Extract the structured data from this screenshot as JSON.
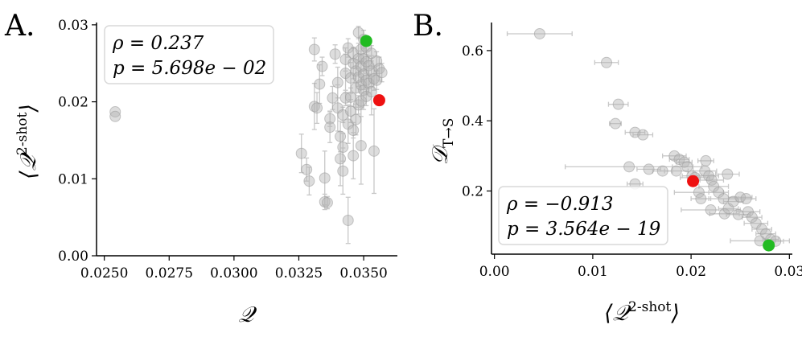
{
  "chart_data": [
    {
      "panel_label": "A.",
      "type": "scatter",
      "xlabel": "𝒬",
      "ylabel_main": "⟨𝒬",
      "ylabel_sup": "2-shot",
      "ylabel_close": "⟩",
      "xlim": [
        0.0247,
        0.0363
      ],
      "ylim": [
        0.0,
        0.0303
      ],
      "xticks": [
        0.025,
        0.0275,
        0.03,
        0.0325,
        0.035
      ],
      "xtick_labels": [
        "0.0250",
        "0.0275",
        "0.0300",
        "0.0325",
        "0.0350"
      ],
      "yticks": [
        0.0,
        0.01,
        0.02,
        0.03
      ],
      "ytick_labels": [
        "0.00",
        "0.01",
        "0.02",
        "0.03"
      ],
      "stats": {
        "rho_line": "ρ = 0.237",
        "p_line": "p = 5.698e − 02"
      },
      "legend_position": "top-left",
      "grid": false,
      "colors": {
        "points": "#b3b3b3",
        "errorbars": "#c8c8c8",
        "red": "#ee1111",
        "green": "#22bb22"
      },
      "highlight": [
        {
          "name": "red",
          "x": 0.0356,
          "y": 0.0202
        },
        {
          "name": "green",
          "x": 0.0351,
          "y": 0.0279
        }
      ],
      "points": [
        [
          0.02542,
          0.0187,
          0.0
        ],
        [
          0.02542,
          0.0181,
          0.0
        ],
        [
          0.0326,
          0.0133,
          0.0025
        ],
        [
          0.0328,
          0.0112,
          0.0015
        ],
        [
          0.0329,
          0.0097,
          0.0018
        ],
        [
          0.0331,
          0.0194,
          0.003
        ],
        [
          0.0331,
          0.0268,
          0.0015
        ],
        [
          0.0332,
          0.0192,
          0.002
        ],
        [
          0.0333,
          0.0223,
          0.0025
        ],
        [
          0.0334,
          0.0246,
          0.0012
        ],
        [
          0.0335,
          0.007,
          0.001
        ],
        [
          0.0335,
          0.0101,
          0.0035
        ],
        [
          0.0336,
          0.0069,
          0.0008
        ],
        [
          0.0337,
          0.0178,
          0.001
        ],
        [
          0.0337,
          0.0167,
          0.002
        ],
        [
          0.0338,
          0.0205,
          0.0015
        ],
        [
          0.0339,
          0.0262,
          0.0012
        ],
        [
          0.034,
          0.0225,
          0.002
        ],
        [
          0.034,
          0.0192,
          0.003
        ],
        [
          0.0341,
          0.0155,
          0.002
        ],
        [
          0.0341,
          0.0126,
          0.0035
        ],
        [
          0.0342,
          0.0183,
          0.001
        ],
        [
          0.0342,
          0.0141,
          0.0018
        ],
        [
          0.0342,
          0.011,
          0.003
        ],
        [
          0.0343,
          0.0255,
          0.0015
        ],
        [
          0.0343,
          0.0237,
          0.0025
        ],
        [
          0.0343,
          0.0205,
          0.001
        ],
        [
          0.0344,
          0.027,
          0.0012
        ],
        [
          0.0344,
          0.0171,
          0.0025
        ],
        [
          0.0344,
          0.0046,
          0.003
        ],
        [
          0.0345,
          0.0231,
          0.002
        ],
        [
          0.0345,
          0.0206,
          0.0012
        ],
        [
          0.0345,
          0.0188,
          0.0015
        ],
        [
          0.0346,
          0.0263,
          0.0008
        ],
        [
          0.0346,
          0.025,
          0.002
        ],
        [
          0.0346,
          0.0163,
          0.001
        ],
        [
          0.0346,
          0.013,
          0.003
        ],
        [
          0.0347,
          0.024,
          0.0015
        ],
        [
          0.0347,
          0.0218,
          0.0025
        ],
        [
          0.0347,
          0.0177,
          0.002
        ],
        [
          0.0348,
          0.029,
          0.0008
        ],
        [
          0.0348,
          0.0256,
          0.002
        ],
        [
          0.0348,
          0.0232,
          0.0012
        ],
        [
          0.0348,
          0.0196,
          0.0012
        ],
        [
          0.0349,
          0.0268,
          0.0015
        ],
        [
          0.0349,
          0.0246,
          0.002
        ],
        [
          0.0349,
          0.0222,
          0.001
        ],
        [
          0.0349,
          0.0201,
          0.002
        ],
        [
          0.0349,
          0.0143,
          0.005
        ],
        [
          0.035,
          0.0281,
          0.0012
        ],
        [
          0.035,
          0.0256,
          0.0015
        ],
        [
          0.035,
          0.0236,
          0.002
        ],
        [
          0.035,
          0.0215,
          0.0025
        ],
        [
          0.0351,
          0.0271,
          0.001
        ],
        [
          0.0351,
          0.0252,
          0.0015
        ],
        [
          0.0351,
          0.0228,
          0.0018
        ],
        [
          0.0351,
          0.0207,
          0.0012
        ],
        [
          0.0352,
          0.0247,
          0.0012
        ],
        [
          0.0352,
          0.0224,
          0.0012
        ],
        [
          0.0353,
          0.0263,
          0.001
        ],
        [
          0.0353,
          0.024,
          0.002
        ],
        [
          0.0353,
          0.0213,
          0.003
        ],
        [
          0.0354,
          0.0136,
          0.0055
        ],
        [
          0.0354,
          0.023,
          0.0015
        ],
        [
          0.0355,
          0.0253,
          0.0012
        ],
        [
          0.0355,
          0.0228,
          0.0012
        ],
        [
          0.0356,
          0.0243,
          0.0015
        ],
        [
          0.0357,
          0.0238,
          0.0012
        ]
      ]
    },
    {
      "panel_label": "B.",
      "type": "scatter",
      "xlabel_main": "⟨𝒬",
      "xlabel_sup": "2-shot",
      "xlabel_close": "⟩",
      "ylabel_main": "𝒟",
      "ylabel_sub": "T→S",
      "xlim": [
        -0.0003,
        0.0303
      ],
      "ylim": [
        0.02,
        0.68
      ],
      "xticks": [
        0.0,
        0.01,
        0.02,
        0.03
      ],
      "xtick_labels": [
        "0.00",
        "0.01",
        "0.02",
        "0.03"
      ],
      "yticks": [
        0.2,
        0.4,
        0.6
      ],
      "ytick_labels": [
        "0.2",
        "0.4",
        "0.6"
      ],
      "stats": {
        "rho_line": "ρ = −0.913",
        "p_line": "p = 3.564e − 19"
      },
      "legend_position": "bottom-left",
      "grid": false,
      "colors": {
        "points": "#b3b3b3",
        "errorbars": "#c8c8c8",
        "red": "#ee1111",
        "green": "#22bb22"
      },
      "highlight": [
        {
          "name": "red",
          "x": 0.0202,
          "y": 0.228
        },
        {
          "name": "green",
          "x": 0.0279,
          "y": 0.045
        }
      ],
      "points": [
        [
          0.0046,
          0.648,
          0.0033
        ],
        [
          0.0114,
          0.566,
          0.0012
        ],
        [
          0.0126,
          0.447,
          0.001
        ],
        [
          0.0123,
          0.392,
          0.0006
        ],
        [
          0.0143,
          0.367,
          0.001
        ],
        [
          0.0151,
          0.36,
          0.001
        ],
        [
          0.0137,
          0.269,
          0.0065
        ],
        [
          0.0157,
          0.262,
          0.0012
        ],
        [
          0.0143,
          0.22,
          0.0008
        ],
        [
          0.0171,
          0.257,
          0.001
        ],
        [
          0.0183,
          0.3,
          0.0012
        ],
        [
          0.0188,
          0.29,
          0.001
        ],
        [
          0.0185,
          0.257,
          0.0012
        ],
        [
          0.0193,
          0.282,
          0.0008
        ],
        [
          0.0196,
          0.269,
          0.0015
        ],
        [
          0.0201,
          0.243,
          0.001
        ],
        [
          0.0204,
          0.238,
          0.0015
        ],
        [
          0.0208,
          0.196,
          0.0025
        ],
        [
          0.021,
          0.178,
          0.001
        ],
        [
          0.0215,
          0.286,
          0.0008
        ],
        [
          0.0214,
          0.257,
          0.0012
        ],
        [
          0.0218,
          0.243,
          0.001
        ],
        [
          0.0221,
          0.231,
          0.0012
        ],
        [
          0.0223,
          0.213,
          0.0015
        ],
        [
          0.0228,
          0.196,
          0.001
        ],
        [
          0.022,
          0.146,
          0.003
        ],
        [
          0.0233,
          0.178,
          0.0015
        ],
        [
          0.0234,
          0.135,
          0.0015
        ],
        [
          0.0238,
          0.15,
          0.001
        ],
        [
          0.0243,
          0.17,
          0.001
        ],
        [
          0.0237,
          0.248,
          0.0012
        ],
        [
          0.025,
          0.182,
          0.0012
        ],
        [
          0.0248,
          0.133,
          0.0012
        ],
        [
          0.0256,
          0.178,
          0.001
        ],
        [
          0.0258,
          0.141,
          0.0012
        ],
        [
          0.0262,
          0.125,
          0.001
        ],
        [
          0.0266,
          0.108,
          0.0012
        ],
        [
          0.0272,
          0.091,
          0.001
        ],
        [
          0.027,
          0.058,
          0.003
        ],
        [
          0.0276,
          0.078,
          0.001
        ],
        [
          0.0281,
          0.062,
          0.0008
        ],
        [
          0.0286,
          0.057,
          0.0008
        ]
      ]
    }
  ]
}
